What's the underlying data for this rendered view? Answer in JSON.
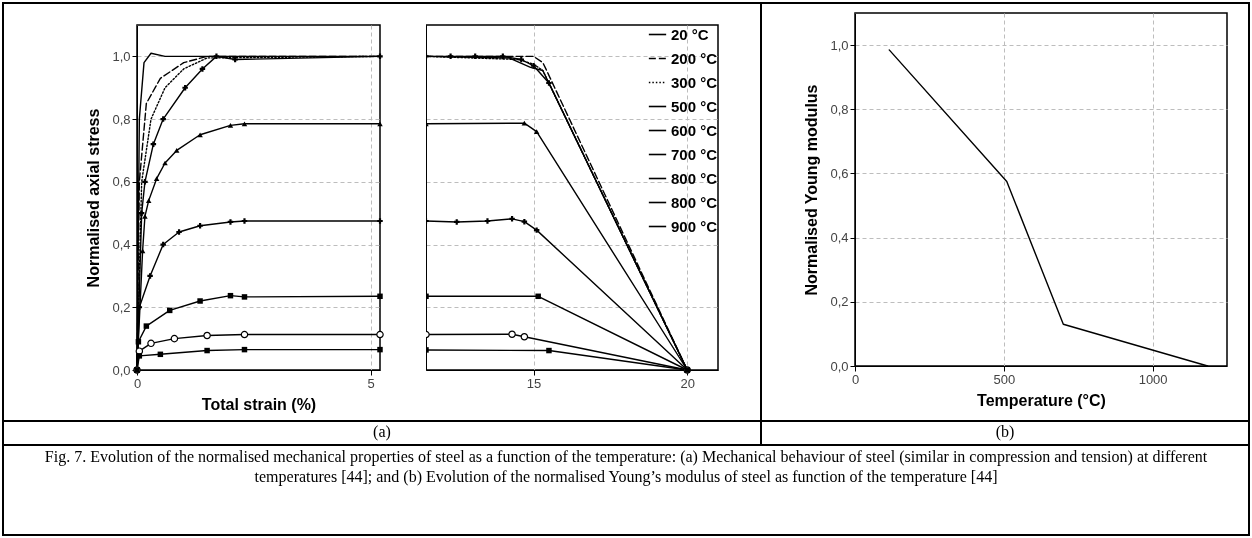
{
  "chart_data": [
    {
      "type": "line",
      "xlabel": "Total strain (%)",
      "ylabel": "Normalised axial stress",
      "xlim": [
        0,
        5.2
      ],
      "xticks": [
        0,
        5
      ],
      "ylim": [
        0,
        1.1
      ],
      "yticks": [
        {
          "value": 0,
          "label": "0,0"
        },
        {
          "value": 0.2,
          "label": "0,2"
        },
        {
          "value": 0.4,
          "label": "0,4"
        },
        {
          "value": 0.6,
          "label": "0,6"
        },
        {
          "value": 0.8,
          "label": "0,8"
        },
        {
          "value": 1,
          "label": "1,0"
        }
      ],
      "grid": true,
      "annotations": [
        "(a)",
        "Fig. 7. Evolution of the normalised mechanical properties of steel as a function of the temperature: (a) Mechanical behaviour of steel (similar in compression and tension) at different temperatures [44]; and (b) Evolution of the normalised Young’s modulus of steel as function of the temperature [44]"
      ],
      "series": [
        {
          "color": "#000000",
          "line_style": "solid",
          "marker": "none",
          "x": [
            0,
            0.05,
            0.15,
            0.3,
            0.6,
            5.2
          ],
          "values": [
            0,
            0.8,
            0.98,
            1.01,
            1.0,
            1.0
          ]
        },
        {
          "color": "#000000",
          "line_style": "dashed",
          "marker": "none",
          "x": [
            0,
            0.05,
            0.2,
            0.5,
            1.0,
            1.5,
            5.2
          ],
          "values": [
            0,
            0.6,
            0.85,
            0.93,
            0.98,
            1.0,
            1.0
          ]
        },
        {
          "color": "#000000",
          "line_style": "dotted",
          "marker": "none",
          "x": [
            0,
            0.1,
            0.3,
            0.6,
            1.0,
            1.5,
            5.2
          ],
          "values": [
            0,
            0.6,
            0.8,
            0.9,
            0.96,
            0.995,
            1.0
          ]
        },
        {
          "color": "#000000",
          "line_style": "solid",
          "marker": "cross",
          "x": [
            0,
            0.1,
            0.17,
            0.35,
            0.56,
            1.03,
            1.4,
            1.7,
            2.1,
            5.2
          ],
          "values": [
            0,
            0.5,
            0.6,
            0.72,
            0.8,
            0.9,
            0.96,
            1.0,
            0.99,
            1.0
          ]
        },
        {
          "color": "#000000",
          "line_style": "solid",
          "marker": "triangle",
          "x": [
            0,
            0.12,
            0.17,
            0.25,
            0.42,
            0.6,
            0.85,
            1.35,
            2.0,
            2.3,
            5.2
          ],
          "values": [
            0,
            0.38,
            0.49,
            0.54,
            0.61,
            0.66,
            0.7,
            0.75,
            0.78,
            0.785,
            0.785
          ]
        },
        {
          "color": "#000000",
          "line_style": "solid",
          "marker": "cross",
          "x": [
            0,
            0.05,
            0.28,
            0.56,
            0.9,
            1.35,
            2.0,
            2.3,
            5.2
          ],
          "values": [
            0,
            0.2,
            0.3,
            0.4,
            0.44,
            0.46,
            0.472,
            0.475,
            0.475
          ]
        },
        {
          "color": "#000000",
          "line_style": "solid",
          "marker": "square",
          "x": [
            0,
            0.03,
            0.2,
            0.7,
            1.35,
            2.0,
            2.3,
            5.2
          ],
          "values": [
            0,
            0.09,
            0.14,
            0.19,
            0.22,
            0.237,
            0.233,
            0.235
          ]
        },
        {
          "color": "#000000",
          "line_style": "solid",
          "marker": "circle",
          "x": [
            0,
            0.05,
            0.3,
            0.8,
            1.5,
            2.3,
            5.2
          ],
          "values": [
            0,
            0.06,
            0.085,
            0.1,
            0.11,
            0.113,
            0.113
          ]
        },
        {
          "color": "#000000",
          "line_style": "solid",
          "marker": "square",
          "x": [
            0,
            0.05,
            0.5,
            1.5,
            2.3,
            5.2
          ],
          "values": [
            0,
            0.045,
            0.05,
            0.062,
            0.065,
            0.065
          ]
        }
      ]
    },
    {
      "type": "line",
      "xlim": [
        11.5,
        21
      ],
      "xticks": [
        15,
        20
      ],
      "ylim": [
        0,
        1.1
      ],
      "yticks": [
        0,
        0.2,
        0.4,
        0.6,
        0.8,
        1
      ],
      "tick_labels": "x",
      "grid": true,
      "legend": "top right",
      "series": [
        {
          "name": "20 °C",
          "color": "#000000",
          "line_style": "solid",
          "marker": "none",
          "x": [
            11.5,
            14.2,
            14.9,
            15.3,
            20
          ],
          "values": [
            1.0,
            0.995,
            0.965,
            0.955,
            0
          ]
        },
        {
          "name": "200 °C",
          "color": "#000000",
          "line_style": "dashed",
          "marker": "none",
          "x": [
            11.5,
            15.0,
            15.3,
            15.4,
            20
          ],
          "values": [
            1.0,
            1.0,
            0.98,
            0.96,
            0
          ]
        },
        {
          "name": "300 °C",
          "color": "#000000",
          "line_style": "dotted",
          "marker": "none",
          "x": [
            11.5,
            14.5,
            15.0,
            15.3,
            20
          ],
          "values": [
            1.0,
            0.99,
            0.975,
            0.955,
            0
          ]
        },
        {
          "name": "500 °C",
          "color": "#000000",
          "line_style": "solid",
          "marker": "cross",
          "x": [
            11.5,
            12.3,
            13.1,
            14.0,
            14.6,
            15.0,
            15.5,
            20
          ],
          "values": [
            1.0,
            1.0,
            1.0,
            1.0,
            0.99,
            0.97,
            0.915,
            0
          ]
        },
        {
          "name": "600 °C",
          "color": "#000000",
          "line_style": "solid",
          "marker": "triangle",
          "x": [
            11.5,
            14.7,
            15.1,
            20
          ],
          "values": [
            0.785,
            0.787,
            0.76,
            0
          ]
        },
        {
          "name": "700 °C",
          "color": "#000000",
          "line_style": "solid",
          "marker": "cross",
          "x": [
            11.5,
            12.5,
            13.5,
            14.3,
            14.7,
            15.1,
            20
          ],
          "values": [
            0.475,
            0.472,
            0.475,
            0.482,
            0.473,
            0.446,
            0
          ]
        },
        {
          "name": "800 °C",
          "color": "#000000",
          "line_style": "solid",
          "marker": "square",
          "x": [
            11.5,
            15.15,
            20
          ],
          "values": [
            0.235,
            0.235,
            0
          ]
        },
        {
          "name": "800 °C",
          "color": "#000000",
          "line_style": "solid",
          "marker": "circle",
          "x": [
            11.5,
            14.3,
            14.7,
            20
          ],
          "values": [
            0.113,
            0.114,
            0.106,
            0
          ]
        },
        {
          "name": "900 °C",
          "color": "#000000",
          "line_style": "solid",
          "marker": "square",
          "x": [
            11.5,
            15.5,
            20
          ],
          "values": [
            0.064,
            0.062,
            0
          ]
        }
      ]
    },
    {
      "type": "line",
      "xlabel": "Temperature (°C)",
      "ylabel": "Normalised Young modulus",
      "xlim": [
        0,
        1250
      ],
      "xticks": [
        0,
        500,
        1000
      ],
      "ylim": [
        0,
        1.1
      ],
      "yticks": [
        {
          "value": 0,
          "label": "0,0"
        },
        {
          "value": 0.2,
          "label": "0,2"
        },
        {
          "value": 0.4,
          "label": "0,4"
        },
        {
          "value": 0.6,
          "label": "0,6"
        },
        {
          "value": 0.8,
          "label": "0,8"
        },
        {
          "value": 1,
          "label": "1,0"
        }
      ],
      "grid": true,
      "annotations": [
        "(b)"
      ],
      "series": [
        {
          "color": "#000000",
          "line_style": "solid",
          "marker": "none",
          "x": [
            115,
            510,
            700,
            1185
          ],
          "values": [
            0.985,
            0.575,
            0.13,
            0
          ]
        }
      ]
    }
  ]
}
